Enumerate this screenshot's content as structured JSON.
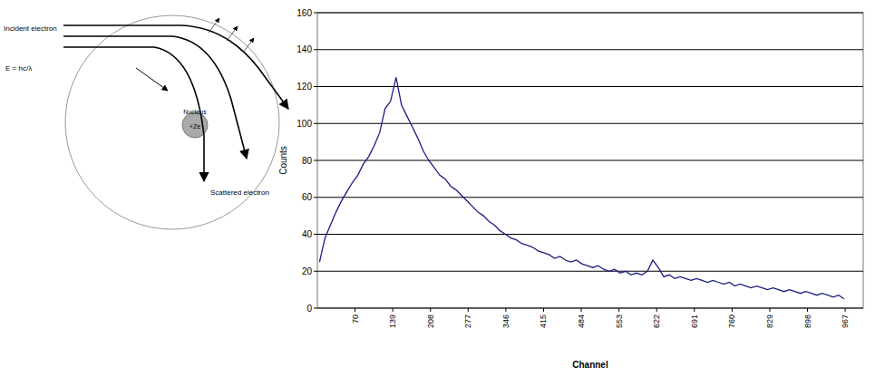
{
  "diagram": {
    "incident_label": "Incident electron",
    "nucleus_label": "Nucleus",
    "charge_label": "+Ze",
    "scattered_label": "Scattered electron",
    "formula": "E = hc/λ"
  },
  "chart_data": {
    "type": "line",
    "y_label": "Counts",
    "x_label": "Channel",
    "color": "#1c1c82",
    "xlim": [
      1,
      1000
    ],
    "xticks": [
      70,
      139,
      208,
      277,
      346,
      415,
      484,
      553,
      622,
      691,
      760,
      829,
      898,
      967
    ],
    "ylim": [
      0,
      160
    ],
    "yticks": [
      0,
      20,
      40,
      60,
      80,
      100,
      120,
      140,
      160
    ],
    "grid": true,
    "x": [
      5,
      15,
      25,
      35,
      45,
      55,
      65,
      75,
      85,
      95,
      105,
      115,
      125,
      135,
      145,
      155,
      165,
      175,
      185,
      195,
      205,
      215,
      225,
      235,
      245,
      255,
      265,
      275,
      285,
      295,
      305,
      315,
      325,
      335,
      345,
      355,
      365,
      375,
      385,
      395,
      405,
      415,
      425,
      435,
      445,
      455,
      465,
      475,
      485,
      495,
      505,
      515,
      525,
      535,
      545,
      555,
      565,
      575,
      585,
      595,
      605,
      615,
      625,
      635,
      645,
      655,
      665,
      675,
      685,
      695,
      705,
      715,
      725,
      735,
      745,
      755,
      765,
      775,
      785,
      795,
      805,
      815,
      825,
      835,
      845,
      855,
      865,
      875,
      885,
      895,
      905,
      915,
      925,
      935,
      945,
      955,
      965
    ],
    "values": [
      25,
      38,
      45,
      52,
      58,
      63,
      68,
      72,
      78,
      82,
      88,
      95,
      108,
      112,
      125,
      110,
      104,
      98,
      92,
      85,
      80,
      76,
      72,
      70,
      66,
      64,
      61,
      58,
      55,
      52,
      50,
      47,
      45,
      42,
      40,
      38,
      37,
      35,
      34,
      33,
      31,
      30,
      29,
      27,
      28,
      26,
      25,
      26,
      24,
      23,
      22,
      23,
      21,
      20,
      21,
      19,
      20,
      18,
      19,
      18,
      20,
      26,
      22,
      17,
      18,
      16,
      17,
      16,
      15,
      16,
      15,
      14,
      15,
      14,
      13,
      14,
      12,
      13,
      12,
      11,
      12,
      11,
      10,
      11,
      10,
      9,
      10,
      9,
      8,
      9,
      8,
      7,
      8,
      7,
      6,
      7,
      5
    ]
  }
}
